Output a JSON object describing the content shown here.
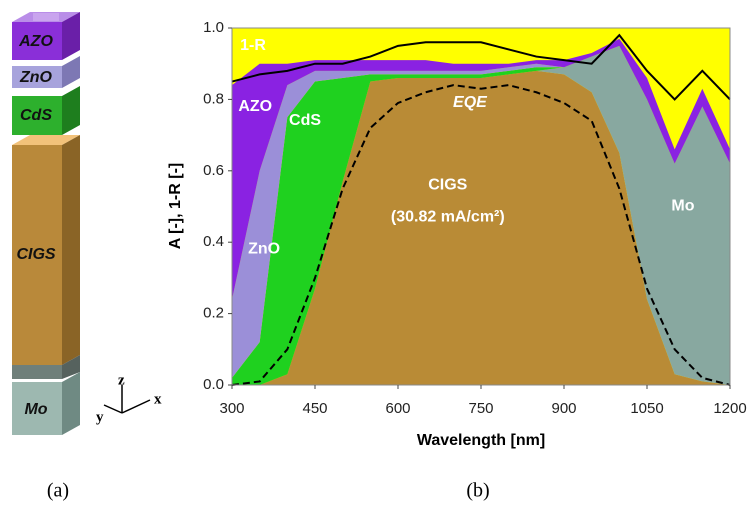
{
  "chart_data": {
    "type": "area",
    "y_label": "A [-], 1-R [-]",
    "x_label": "Wavelength [nm]",
    "x": [
      300,
      350,
      400,
      450,
      500,
      550,
      600,
      650,
      700,
      750,
      800,
      850,
      900,
      950,
      1000,
      1050,
      1100,
      1150,
      1200
    ],
    "series": [
      {
        "name": "CIGS",
        "color": "#b98b36",
        "values": [
          0,
          0,
          0.03,
          0.27,
          0.57,
          0.85,
          0.86,
          0.86,
          0.86,
          0.86,
          0.87,
          0.88,
          0.87,
          0.82,
          0.65,
          0.24,
          0.03,
          0.01,
          0
        ]
      },
      {
        "name": "Mo",
        "color": "#88a8a0",
        "values": [
          0,
          0,
          0,
          0,
          0,
          0,
          0,
          0,
          0,
          0,
          0,
          0,
          0.02,
          0.1,
          0.3,
          0.56,
          0.59,
          0.77,
          0.62
        ]
      },
      {
        "name": "CdS",
        "color": "#1fd11f",
        "values": [
          0.02,
          0.12,
          0.72,
          0.58,
          0.29,
          0.02,
          0.01,
          0.01,
          0.01,
          0.01,
          0.01,
          0.01,
          0,
          0,
          0,
          0,
          0,
          0,
          0
        ]
      },
      {
        "name": "ZnO",
        "color": "#9b8fd8",
        "values": [
          0.22,
          0.48,
          0.09,
          0.03,
          0.02,
          0.01,
          0.01,
          0.01,
          0.01,
          0.01,
          0.01,
          0.01,
          0,
          0,
          0,
          0,
          0,
          0,
          0
        ]
      },
      {
        "name": "AZO",
        "color": "#8a22e2",
        "values": [
          0.6,
          0.3,
          0.06,
          0.03,
          0.03,
          0.03,
          0.03,
          0.03,
          0.02,
          0.02,
          0.01,
          0.01,
          0.02,
          0.01,
          0.02,
          0.06,
          0.04,
          0.05,
          0.04
        ]
      },
      {
        "name": "1-R",
        "type": "line",
        "color": "#000000",
        "values": [
          0.85,
          0.87,
          0.88,
          0.9,
          0.9,
          0.92,
          0.95,
          0.96,
          0.96,
          0.96,
          0.94,
          0.92,
          0.91,
          0.9,
          0.98,
          0.88,
          0.8,
          0.88,
          0.8
        ]
      },
      {
        "name": "EQE",
        "type": "line",
        "dash": true,
        "color": "#000000",
        "values": [
          0,
          0.01,
          0.1,
          0.3,
          0.55,
          0.72,
          0.79,
          0.82,
          0.84,
          0.83,
          0.84,
          0.82,
          0.79,
          0.74,
          0.55,
          0.27,
          0.1,
          0.02,
          0
        ]
      }
    ],
    "annotations": [
      "(30.82 mA/cm²)"
    ],
    "plot_background": "#ffff00",
    "xlim": [
      300,
      1200
    ],
    "xticks": [
      300,
      450,
      600,
      750,
      900,
      1050,
      1200
    ],
    "ylim": [
      0,
      1
    ],
    "yticks": [
      {
        "value": 0,
        "label": "0.0"
      },
      0.2,
      0.4,
      0.6,
      0.8,
      {
        "value": 1,
        "label": "1.0"
      }
    ]
  },
  "layer_stack": {
    "layers": [
      "AZO",
      "ZnO",
      "CdS",
      "CIGS",
      "Mo"
    ],
    "axes": [
      "z",
      "y",
      "x"
    ]
  },
  "captions": [
    "(a)",
    "(b)"
  ]
}
